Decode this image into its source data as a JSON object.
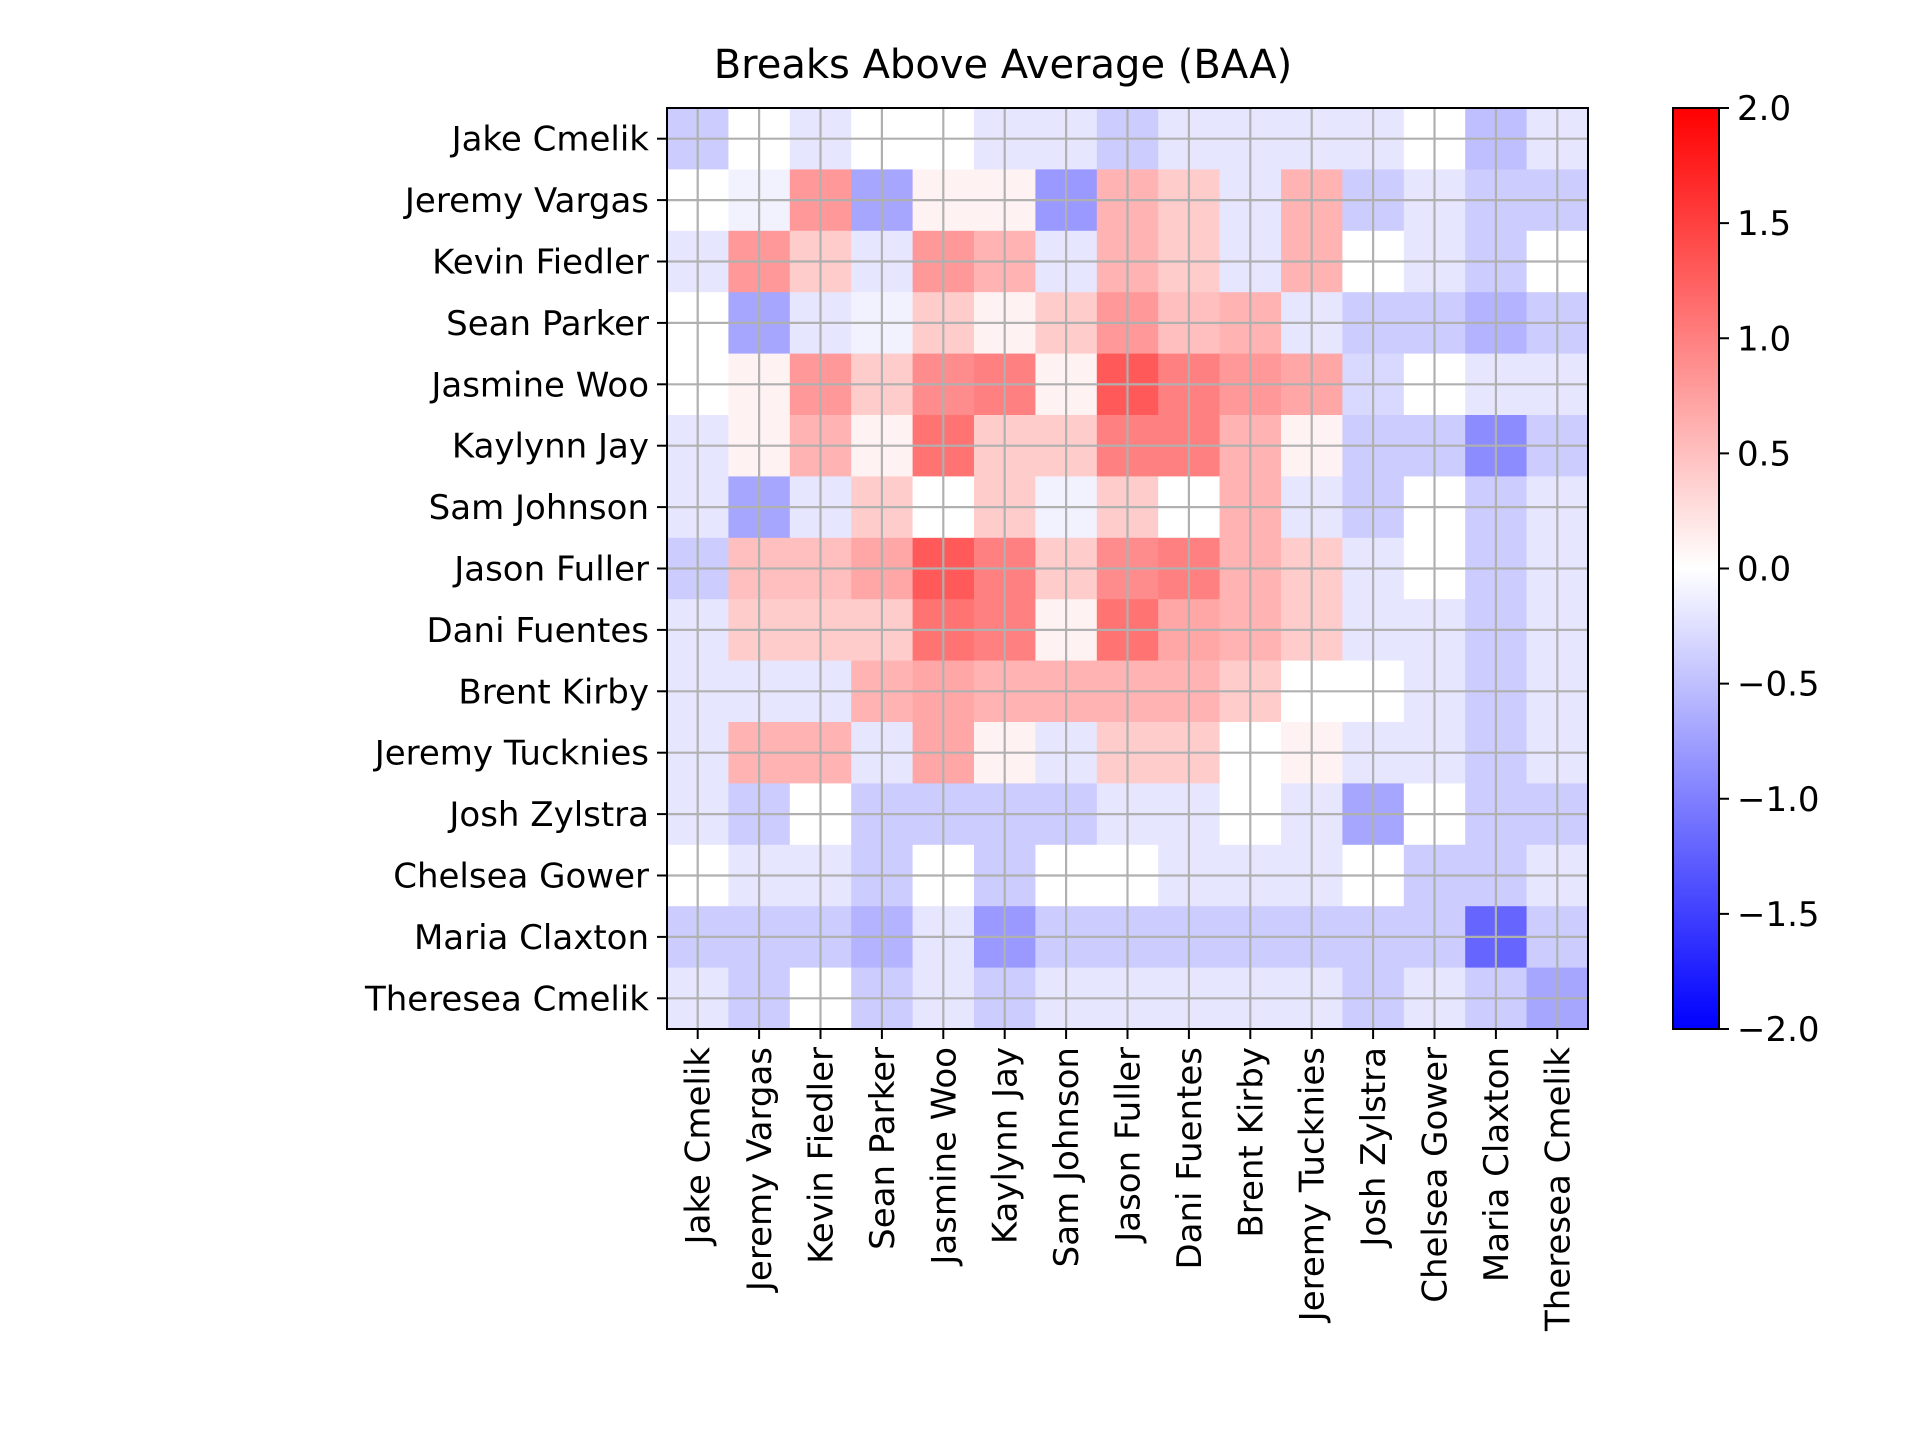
{
  "chart_data": {
    "type": "heatmap",
    "title": "Breaks Above Average (BAA)",
    "xlabel": "",
    "ylabel": "",
    "rows": [
      "Jake Cmelik",
      "Jeremy Vargas",
      "Kevin Fiedler",
      "Sean Parker",
      "Jasmine Woo",
      "Kaylynn Jay",
      "Sam Johnson",
      "Jason Fuller",
      "Dani Fuentes",
      "Brent Kirby",
      "Jeremy Tucknies",
      "Josh Zylstra",
      "Chelsea Gower",
      "Maria Claxton",
      "Theresea Cmelik"
    ],
    "columns": [
      "Jake Cmelik",
      "Jeremy Vargas",
      "Kevin Fiedler",
      "Sean Parker",
      "Jasmine Woo",
      "Kaylynn Jay",
      "Sam Johnson",
      "Jason Fuller",
      "Dani Fuentes",
      "Brent Kirby",
      "Jeremy Tucknies",
      "Josh Zylstra",
      "Chelsea Gower",
      "Maria Claxton",
      "Theresea Cmelik"
    ],
    "values": [
      [
        -0.4,
        0.0,
        -0.2,
        0.0,
        0.0,
        -0.2,
        -0.2,
        -0.4,
        -0.2,
        -0.2,
        -0.2,
        -0.2,
        0.0,
        -0.5,
        -0.2
      ],
      [
        0.0,
        -0.1,
        0.8,
        -0.7,
        0.1,
        0.1,
        -0.8,
        0.6,
        0.4,
        -0.2,
        0.6,
        -0.4,
        -0.2,
        -0.4,
        -0.4
      ],
      [
        -0.2,
        0.8,
        0.4,
        -0.2,
        0.8,
        0.6,
        -0.2,
        0.6,
        0.4,
        -0.2,
        0.6,
        0.0,
        -0.2,
        -0.4,
        0.0
      ],
      [
        0.0,
        -0.7,
        -0.2,
        -0.1,
        0.4,
        0.1,
        0.4,
        0.8,
        0.5,
        0.6,
        -0.2,
        -0.4,
        -0.4,
        -0.6,
        -0.4
      ],
      [
        0.0,
        0.1,
        0.8,
        0.4,
        0.9,
        1.0,
        0.1,
        1.3,
        1.0,
        0.8,
        0.7,
        -0.3,
        0.0,
        -0.2,
        -0.2
      ],
      [
        -0.2,
        0.1,
        0.6,
        0.1,
        1.1,
        0.4,
        0.4,
        1.0,
        1.0,
        0.6,
        0.1,
        -0.4,
        -0.4,
        -0.9,
        -0.4
      ],
      [
        -0.2,
        -0.7,
        -0.2,
        0.4,
        0.0,
        0.4,
        -0.1,
        0.4,
        0.0,
        0.6,
        -0.2,
        -0.4,
        0.0,
        -0.4,
        -0.2
      ],
      [
        -0.4,
        0.5,
        0.5,
        0.7,
        1.3,
        1.0,
        0.4,
        0.9,
        1.0,
        0.6,
        0.4,
        -0.2,
        0.0,
        -0.4,
        -0.2
      ],
      [
        -0.2,
        0.4,
        0.4,
        0.4,
        1.1,
        1.0,
        0.1,
        1.1,
        0.7,
        0.6,
        0.4,
        -0.2,
        -0.2,
        -0.4,
        -0.2
      ],
      [
        -0.2,
        -0.2,
        -0.2,
        0.6,
        0.7,
        0.6,
        0.6,
        0.6,
        0.6,
        0.4,
        0.0,
        0.0,
        -0.2,
        -0.4,
        -0.2
      ],
      [
        -0.2,
        0.6,
        0.6,
        -0.2,
        0.7,
        0.1,
        -0.2,
        0.4,
        0.4,
        0.0,
        0.1,
        -0.2,
        -0.2,
        -0.4,
        -0.2
      ],
      [
        -0.2,
        -0.4,
        0.0,
        -0.4,
        -0.4,
        -0.4,
        -0.4,
        -0.2,
        -0.2,
        0.0,
        -0.2,
        -0.7,
        0.0,
        -0.4,
        -0.4
      ],
      [
        0.0,
        -0.2,
        -0.2,
        -0.4,
        0.0,
        -0.4,
        0.0,
        0.0,
        -0.2,
        -0.2,
        -0.2,
        0.0,
        -0.4,
        -0.4,
        -0.2
      ],
      [
        -0.4,
        -0.4,
        -0.4,
        -0.6,
        -0.2,
        -0.8,
        -0.4,
        -0.4,
        -0.4,
        -0.4,
        -0.4,
        -0.4,
        -0.4,
        -1.2,
        -0.4
      ],
      [
        -0.2,
        -0.4,
        0.0,
        -0.4,
        -0.2,
        -0.4,
        -0.2,
        -0.2,
        -0.2,
        -0.2,
        -0.2,
        -0.4,
        -0.2,
        -0.4,
        -0.7
      ]
    ],
    "colorbar": {
      "colormap": "bwr",
      "vmin": -2.0,
      "vmax": 2.0,
      "ticks": [
        "−2.0",
        "−1.5",
        "−1.0",
        "−0.5",
        "0.0",
        "0.5",
        "1.0",
        "1.5",
        "2.0"
      ],
      "tick_values": [
        -2.0,
        -1.5,
        -1.0,
        -0.5,
        0.0,
        0.5,
        1.0,
        1.5,
        2.0
      ]
    },
    "grid": true,
    "grid_color": "#b0b0b0"
  }
}
